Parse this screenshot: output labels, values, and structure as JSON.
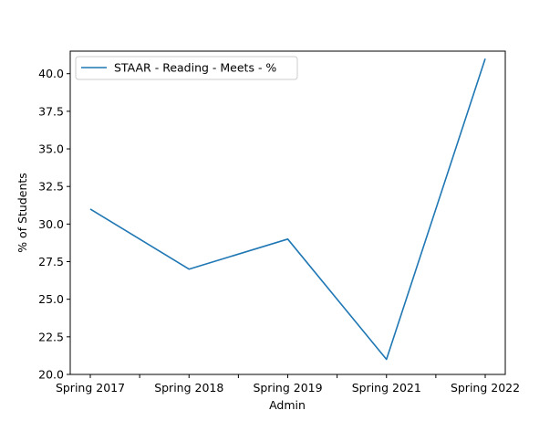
{
  "chart_data": {
    "type": "line",
    "categories": [
      "Spring 2017",
      "Spring 2018",
      "Spring 2019",
      "Spring 2021",
      "Spring 2022"
    ],
    "series": [
      {
        "name": "STAAR - Reading - Meets - %",
        "values": [
          31,
          27,
          29,
          21,
          41
        ],
        "color": "#1f77b4"
      }
    ],
    "xlabel": "Admin",
    "ylabel": "% of Students",
    "ylim": [
      20,
      41.5
    ],
    "yticks": [
      20.0,
      22.5,
      25.0,
      27.5,
      30.0,
      32.5,
      35.0,
      37.5,
      40.0
    ],
    "ytick_labels": [
      "20.0",
      "22.5",
      "25.0",
      "27.5",
      "30.0",
      "32.5",
      "35.0",
      "37.5",
      "40.0"
    ],
    "grid": false,
    "legend_position": "upper-left"
  }
}
